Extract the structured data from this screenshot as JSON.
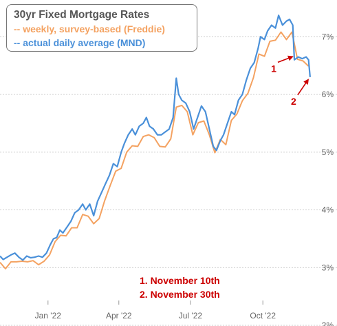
{
  "chart_data": {
    "type": "line",
    "title": "30yr Fixed Mortgage Rates",
    "ylim": [
      2,
      7.6
    ],
    "y_ticks": [
      "2%",
      "3%",
      "4%",
      "5%",
      "6%",
      "7%"
    ],
    "x_ticks": [
      "Jan '22",
      "Apr '22",
      "Jul '22",
      "Oct '22"
    ],
    "grid": "horizontal",
    "legend_position": "top-left",
    "series": [
      {
        "name": "-- weekly, survey-based (Freddie)",
        "color": "#f4a261",
        "points": [
          [
            "2021-11-01",
            3.09
          ],
          [
            "2021-11-08",
            2.98
          ],
          [
            "2021-11-15",
            3.1
          ],
          [
            "2021-11-22",
            3.1
          ],
          [
            "2021-11-29",
            3.11
          ],
          [
            "2021-12-06",
            3.1
          ],
          [
            "2021-12-13",
            3.12
          ],
          [
            "2021-12-20",
            3.05
          ],
          [
            "2021-12-27",
            3.11
          ],
          [
            "2022-01-03",
            3.22
          ],
          [
            "2022-01-10",
            3.45
          ],
          [
            "2022-01-17",
            3.56
          ],
          [
            "2022-01-24",
            3.55
          ],
          [
            "2022-01-31",
            3.69
          ],
          [
            "2022-02-07",
            3.69
          ],
          [
            "2022-02-14",
            3.92
          ],
          [
            "2022-02-21",
            3.89
          ],
          [
            "2022-02-28",
            3.76
          ],
          [
            "2022-03-07",
            3.85
          ],
          [
            "2022-03-14",
            4.16
          ],
          [
            "2022-03-21",
            4.42
          ],
          [
            "2022-03-28",
            4.67
          ],
          [
            "2022-04-04",
            4.72
          ],
          [
            "2022-04-11",
            5.0
          ],
          [
            "2022-04-18",
            5.11
          ],
          [
            "2022-04-25",
            5.1
          ],
          [
            "2022-05-02",
            5.27
          ],
          [
            "2022-05-09",
            5.3
          ],
          [
            "2022-05-16",
            5.25
          ],
          [
            "2022-05-23",
            5.1
          ],
          [
            "2022-05-30",
            5.09
          ],
          [
            "2022-06-06",
            5.23
          ],
          [
            "2022-06-13",
            5.78
          ],
          [
            "2022-06-20",
            5.81
          ],
          [
            "2022-06-27",
            5.7
          ],
          [
            "2022-07-04",
            5.3
          ],
          [
            "2022-07-11",
            5.51
          ],
          [
            "2022-07-18",
            5.54
          ],
          [
            "2022-07-25",
            5.3
          ],
          [
            "2022-08-01",
            4.99
          ],
          [
            "2022-08-08",
            5.22
          ],
          [
            "2022-08-15",
            5.13
          ],
          [
            "2022-08-22",
            5.55
          ],
          [
            "2022-08-29",
            5.66
          ],
          [
            "2022-09-05",
            5.89
          ],
          [
            "2022-09-12",
            6.02
          ],
          [
            "2022-09-19",
            6.29
          ],
          [
            "2022-09-26",
            6.7
          ],
          [
            "2022-10-03",
            6.66
          ],
          [
            "2022-10-10",
            6.92
          ],
          [
            "2022-10-17",
            6.94
          ],
          [
            "2022-10-24",
            7.08
          ],
          [
            "2022-10-31",
            6.95
          ],
          [
            "2022-11-07",
            7.08
          ],
          [
            "2022-11-14",
            6.61
          ],
          [
            "2022-11-21",
            6.58
          ],
          [
            "2022-11-28",
            6.49
          ]
        ]
      },
      {
        "name": "-- actual daily average (MND)",
        "color": "#4a90d9",
        "points": [
          [
            "2021-11-01",
            3.2
          ],
          [
            "2021-11-05",
            3.14
          ],
          [
            "2021-11-10",
            3.18
          ],
          [
            "2021-11-15",
            3.22
          ],
          [
            "2021-11-20",
            3.25
          ],
          [
            "2021-11-25",
            3.18
          ],
          [
            "2021-11-30",
            3.13
          ],
          [
            "2021-12-05",
            3.2
          ],
          [
            "2021-12-10",
            3.17
          ],
          [
            "2021-12-15",
            3.18
          ],
          [
            "2021-12-20",
            3.2
          ],
          [
            "2021-12-25",
            3.18
          ],
          [
            "2021-12-30",
            3.25
          ],
          [
            "2022-01-04",
            3.4
          ],
          [
            "2022-01-08",
            3.5
          ],
          [
            "2022-01-12",
            3.52
          ],
          [
            "2022-01-16",
            3.65
          ],
          [
            "2022-01-20",
            3.6
          ],
          [
            "2022-01-25",
            3.7
          ],
          [
            "2022-01-30",
            3.8
          ],
          [
            "2022-02-04",
            3.95
          ],
          [
            "2022-02-09",
            4.0
          ],
          [
            "2022-02-14",
            4.1
          ],
          [
            "2022-02-18",
            4.0
          ],
          [
            "2022-02-23",
            4.1
          ],
          [
            "2022-02-28",
            3.9
          ],
          [
            "2022-03-05",
            4.15
          ],
          [
            "2022-03-10",
            4.3
          ],
          [
            "2022-03-15",
            4.45
          ],
          [
            "2022-03-20",
            4.6
          ],
          [
            "2022-03-25",
            4.8
          ],
          [
            "2022-03-30",
            4.75
          ],
          [
            "2022-04-04",
            5.0
          ],
          [
            "2022-04-08",
            5.15
          ],
          [
            "2022-04-13",
            5.3
          ],
          [
            "2022-04-18",
            5.4
          ],
          [
            "2022-04-22",
            5.3
          ],
          [
            "2022-04-27",
            5.45
          ],
          [
            "2022-05-02",
            5.5
          ],
          [
            "2022-05-06",
            5.6
          ],
          [
            "2022-05-10",
            5.45
          ],
          [
            "2022-05-15",
            5.4
          ],
          [
            "2022-05-20",
            5.3
          ],
          [
            "2022-05-25",
            5.3
          ],
          [
            "2022-05-30",
            5.35
          ],
          [
            "2022-06-04",
            5.4
          ],
          [
            "2022-06-09",
            5.6
          ],
          [
            "2022-06-13",
            6.28
          ],
          [
            "2022-06-16",
            6.0
          ],
          [
            "2022-06-20",
            5.9
          ],
          [
            "2022-06-25",
            5.85
          ],
          [
            "2022-06-30",
            5.7
          ],
          [
            "2022-07-05",
            5.4
          ],
          [
            "2022-07-10",
            5.6
          ],
          [
            "2022-07-15",
            5.8
          ],
          [
            "2022-07-20",
            5.7
          ],
          [
            "2022-07-25",
            5.4
          ],
          [
            "2022-07-30",
            5.1
          ],
          [
            "2022-08-03",
            5.03
          ],
          [
            "2022-08-08",
            5.2
          ],
          [
            "2022-08-12",
            5.3
          ],
          [
            "2022-08-17",
            5.5
          ],
          [
            "2022-08-22",
            5.7
          ],
          [
            "2022-08-26",
            5.65
          ],
          [
            "2022-08-31",
            5.9
          ],
          [
            "2022-09-05",
            6.0
          ],
          [
            "2022-09-10",
            6.25
          ],
          [
            "2022-09-15",
            6.45
          ],
          [
            "2022-09-20",
            6.55
          ],
          [
            "2022-09-25",
            6.8
          ],
          [
            "2022-09-28",
            7.0
          ],
          [
            "2022-10-03",
            6.95
          ],
          [
            "2022-10-07",
            7.1
          ],
          [
            "2022-10-12",
            7.2
          ],
          [
            "2022-10-17",
            7.15
          ],
          [
            "2022-10-21",
            7.37
          ],
          [
            "2022-10-26",
            7.2
          ],
          [
            "2022-10-31",
            7.27
          ],
          [
            "2022-11-04",
            7.3
          ],
          [
            "2022-11-08",
            7.2
          ],
          [
            "2022-11-10",
            6.6
          ],
          [
            "2022-11-15",
            6.65
          ],
          [
            "2022-11-20",
            6.62
          ],
          [
            "2022-11-25",
            6.65
          ],
          [
            "2022-11-28",
            6.6
          ],
          [
            "2022-11-30",
            6.3
          ]
        ]
      }
    ],
    "annotations": [
      {
        "label": "1",
        "date": "2022-11-10",
        "value": 6.7,
        "color": "#cc0000"
      },
      {
        "label": "2",
        "date": "2022-11-30",
        "value": 6.3,
        "color": "#cc0000"
      }
    ]
  },
  "notes": [
    "1. November 10th",
    "2. November 30th"
  ],
  "colors": {
    "freddie": "#f4a261",
    "mnd": "#4a90d9",
    "annotation": "#cc0000",
    "grid": "#cccccc",
    "axis_text": "#666666",
    "title_text": "#555555"
  }
}
